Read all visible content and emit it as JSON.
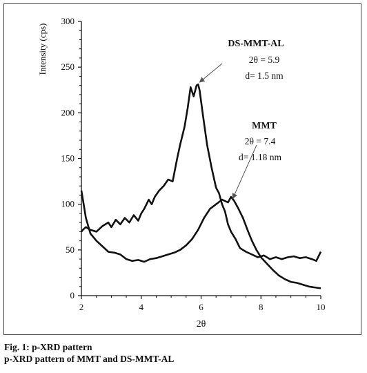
{
  "chart_data": {
    "type": "line",
    "xlabel": "2θ",
    "ylabel": "Intensity (cps)",
    "xlim": [
      2,
      10
    ],
    "ylim": [
      0,
      300
    ],
    "x_ticks": [
      2,
      4,
      6,
      8,
      10
    ],
    "y_ticks": [
      0,
      50,
      100,
      150,
      200,
      250,
      300
    ],
    "grid": false,
    "legend": "none",
    "series": [
      {
        "name": "DS-MMT-AL",
        "x": [
          2.0,
          2.05,
          2.15,
          2.3,
          2.5,
          2.7,
          2.9,
          3.0,
          3.15,
          3.3,
          3.45,
          3.6,
          3.75,
          3.9,
          4.0,
          4.1,
          4.25,
          4.35,
          4.45,
          4.6,
          4.75,
          4.9,
          5.05,
          5.2,
          5.3,
          5.45,
          5.55,
          5.65,
          5.75,
          5.85,
          5.9,
          5.95,
          6.05,
          6.2,
          6.35,
          6.5,
          6.6,
          6.7,
          6.8,
          6.9,
          7.0,
          7.15,
          7.3,
          7.5,
          7.7,
          7.9,
          8.1,
          8.3,
          8.5,
          8.7,
          8.9,
          9.1,
          9.3,
          9.5,
          9.7,
          9.85,
          10.0
        ],
        "y": [
          70,
          72,
          75,
          72,
          70,
          76,
          80,
          75,
          83,
          78,
          85,
          80,
          88,
          82,
          90,
          95,
          105,
          100,
          108,
          115,
          120,
          127,
          125,
          150,
          165,
          185,
          205,
          228,
          218,
          230,
          231,
          225,
          200,
          165,
          140,
          118,
          112,
          100,
          92,
          78,
          70,
          62,
          52,
          48,
          45,
          42,
          44,
          40,
          42,
          40,
          42,
          43,
          41,
          42,
          40,
          38,
          48
        ]
      },
      {
        "name": "MMT",
        "x": [
          2.0,
          2.05,
          2.15,
          2.3,
          2.5,
          2.7,
          2.9,
          3.1,
          3.3,
          3.5,
          3.7,
          3.9,
          4.1,
          4.3,
          4.5,
          4.7,
          4.9,
          5.1,
          5.3,
          5.5,
          5.7,
          5.9,
          6.1,
          6.3,
          6.5,
          6.7,
          6.9,
          7.0,
          7.1,
          7.25,
          7.4,
          7.55,
          7.7,
          7.85,
          8.0,
          8.2,
          8.4,
          8.6,
          8.8,
          9.0,
          9.2,
          9.4,
          9.6,
          9.8,
          10.0
        ],
        "y": [
          115,
          105,
          85,
          68,
          60,
          54,
          48,
          47,
          45,
          40,
          38,
          39,
          37,
          40,
          41,
          43,
          45,
          47,
          50,
          55,
          62,
          72,
          85,
          95,
          100,
          105,
          102,
          108,
          104,
          95,
          85,
          72,
          60,
          50,
          42,
          35,
          28,
          22,
          18,
          15,
          14,
          12,
          10,
          9,
          8
        ]
      }
    ],
    "annotations": [
      {
        "series": "DS-MMT-AL",
        "name": "DS-MMT-AL",
        "lines": [
          "2θ = 5.9",
          "d= 1.5 nm"
        ],
        "point_x": 5.9,
        "point_y": 231
      },
      {
        "series": "MMT",
        "name": "MMT",
        "lines": [
          "2θ = 7.4",
          "d= 1.18 nm"
        ],
        "point_x": 7.0,
        "point_y": 104
      }
    ]
  },
  "caption": {
    "line1": "Fig. 1: p-XRD pattern",
    "line2": "p-XRD pattern of MMT and DS-MMT-AL"
  }
}
